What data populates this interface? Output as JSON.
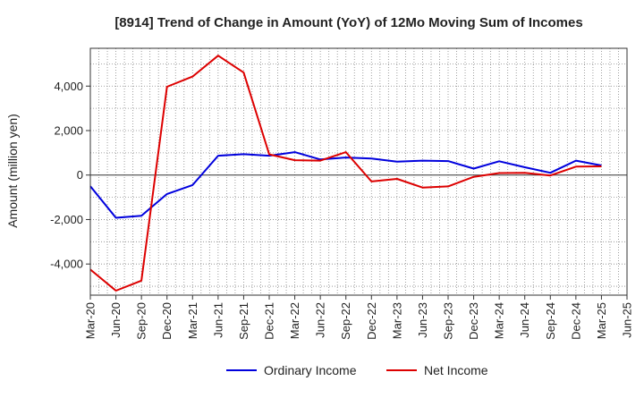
{
  "chart_data": {
    "type": "line",
    "title": "[8914]  Trend of Change in Amount (YoY) of 12Mo Moving Sum of Incomes",
    "xlabel": "",
    "ylabel": "Amount (million yen)",
    "categories": [
      "Mar-20",
      "Jun-20",
      "Sep-20",
      "Dec-20",
      "Mar-21",
      "Jun-21",
      "Sep-21",
      "Dec-21",
      "Mar-22",
      "Jun-22",
      "Sep-22",
      "Dec-22",
      "Mar-23",
      "Jun-23",
      "Sep-23",
      "Dec-23",
      "Mar-24",
      "Jun-24",
      "Sep-24",
      "Dec-24",
      "Mar-25",
      "Jun-25"
    ],
    "ylim": [
      -5400,
      5700
    ],
    "yticks": [
      -4000,
      -2000,
      0,
      2000,
      4000
    ],
    "ytick_labels": [
      "-4,000",
      "-2,000",
      "0",
      "2,000",
      "4,000"
    ],
    "grid": true,
    "legend": "bottom-center",
    "series": [
      {
        "name": "Ordinary Income",
        "color": "#0000dd",
        "values": [
          -500,
          -1920,
          -1830,
          -850,
          -450,
          870,
          940,
          870,
          1030,
          700,
          790,
          740,
          600,
          650,
          630,
          290,
          620,
          350,
          100,
          650,
          430,
          null
        ]
      },
      {
        "name": "Net Income",
        "color": "#dd0000",
        "values": [
          -4250,
          -5200,
          -4750,
          3970,
          4430,
          5370,
          4610,
          930,
          670,
          650,
          1030,
          -290,
          -170,
          -560,
          -510,
          -80,
          90,
          100,
          -20,
          380,
          390,
          null
        ]
      }
    ]
  }
}
